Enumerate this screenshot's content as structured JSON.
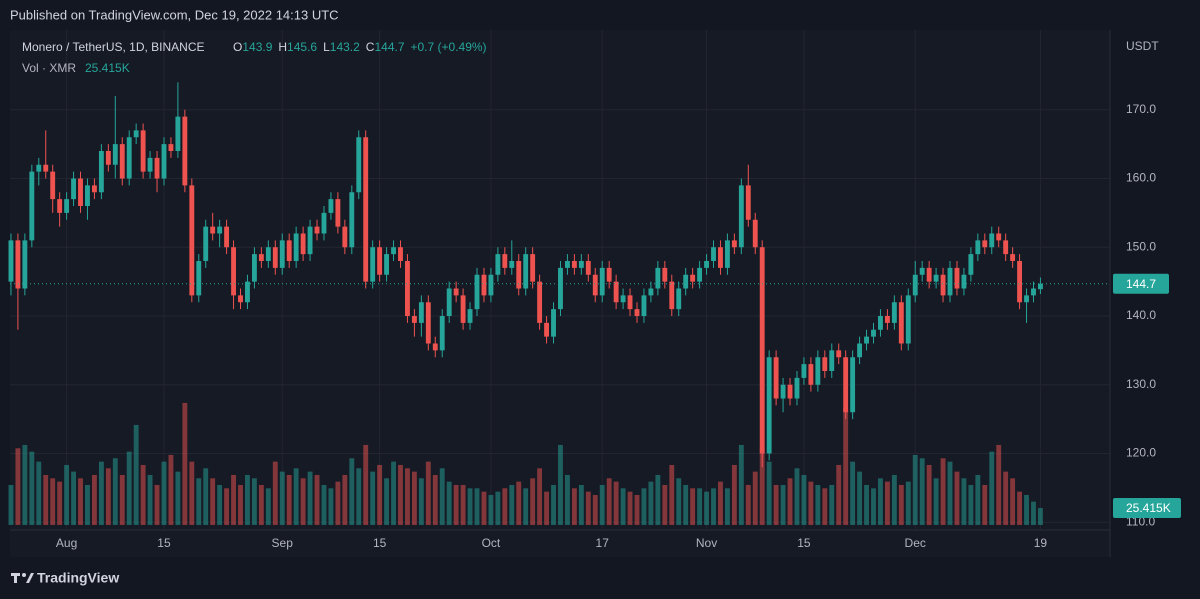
{
  "header": {
    "published": "Published on TradingView.com, Dec 19, 2022 14:13 UTC",
    "brand": "TradingView"
  },
  "chart_data": {
    "type": "candlestick",
    "symbol": "Monero / TetherUS, 1D, BINANCE",
    "ohlc_letters": [
      "O",
      "H",
      "L",
      "C"
    ],
    "change_label": "+0.7 (+0.49%)",
    "volume_title": "Vol · XMR",
    "last_volume_label": "25.415K",
    "price_axis_title": "USDT",
    "up_color": "#26a69a",
    "down_color": "#ef5350",
    "start_date": "2022-07-24",
    "xlim": [
      "2022-07-23",
      "2022-12-29"
    ],
    "xticks": [
      {
        "value": "2022-08-01",
        "label": "Aug"
      },
      {
        "value": "2022-08-15",
        "label": "15"
      },
      {
        "value": "2022-09-01",
        "label": "Sep"
      },
      {
        "value": "2022-09-15",
        "label": "15"
      },
      {
        "value": "2022-10-01",
        "label": "Oct"
      },
      {
        "value": "2022-10-17",
        "label": "17"
      },
      {
        "value": "2022-11-01",
        "label": "Nov"
      },
      {
        "value": "2022-11-15",
        "label": "15"
      },
      {
        "value": "2022-12-01",
        "label": "Dec"
      },
      {
        "value": "2022-12-19",
        "label": "19"
      }
    ],
    "ylim": [
      109.6,
      181.6
    ],
    "yticks": [
      {
        "value": 110,
        "label": "110.0"
      },
      {
        "value": 120,
        "label": "120.0"
      },
      {
        "value": 130,
        "label": "130.0"
      },
      {
        "value": 140,
        "label": "140.0"
      },
      {
        "value": 150,
        "label": "150.0"
      },
      {
        "value": 160,
        "label": "160.0"
      },
      {
        "value": 170,
        "label": "170.0"
      }
    ],
    "volume_ylim": [
      0,
      742
    ],
    "grid": true,
    "open": [
      145,
      151,
      144,
      151,
      161,
      162,
      161,
      157,
      155,
      157,
      160,
      156,
      159,
      158,
      164,
      162,
      165,
      160,
      166,
      167,
      161,
      163,
      160,
      165,
      164,
      169,
      159,
      143,
      148,
      153,
      152,
      153,
      150,
      143,
      142,
      145,
      149,
      148,
      150,
      147,
      151,
      148,
      152,
      149,
      153,
      152,
      155,
      157,
      153,
      150,
      158,
      166,
      145,
      150,
      146,
      149,
      150,
      148,
      140,
      139,
      142,
      136,
      135,
      140,
      144,
      143,
      139,
      141,
      146,
      143,
      146,
      149,
      147,
      148,
      144,
      149,
      145,
      139,
      137,
      141,
      147,
      148,
      147,
      148,
      146,
      143,
      147,
      145,
      142,
      143,
      141,
      140,
      143,
      144,
      147,
      145,
      141,
      144,
      146,
      145,
      147,
      148,
      150,
      147,
      151,
      150,
      159,
      154,
      150,
      120,
      134,
      128,
      130,
      128,
      131,
      133,
      130,
      134,
      132,
      135,
      134,
      126,
      134,
      136,
      137,
      138,
      140,
      139,
      142,
      136,
      143,
      146,
      147,
      145,
      146,
      143,
      147,
      144,
      146,
      149,
      151,
      150,
      152,
      151,
      149,
      148,
      142,
      143,
      143.9
    ],
    "high": [
      152,
      152,
      152,
      162,
      163,
      167,
      162,
      158,
      158,
      161,
      161,
      160,
      160,
      165,
      165,
      172,
      166,
      167,
      168,
      168,
      164,
      164,
      166,
      166,
      174,
      170,
      160,
      149,
      154,
      155,
      154,
      154,
      151,
      144,
      146,
      150,
      150,
      151,
      151,
      152,
      152,
      153,
      153,
      154,
      154,
      156,
      158,
      158,
      154,
      159,
      167,
      167,
      151,
      151,
      150,
      151,
      151,
      149,
      141,
      143,
      143,
      137,
      141,
      145,
      145,
      144,
      142,
      147,
      147,
      147,
      150,
      150,
      151,
      149,
      150,
      150,
      146,
      140,
      142,
      148,
      149,
      149,
      149,
      149,
      147,
      148,
      148,
      146,
      144,
      144,
      142,
      144,
      145,
      148,
      148,
      146,
      145,
      147,
      147,
      148,
      149,
      151,
      151,
      152,
      152,
      160,
      162,
      155,
      151,
      135,
      135,
      131,
      131,
      132,
      134,
      134,
      135,
      135,
      136,
      136,
      135,
      135,
      137,
      138,
      139,
      141,
      141,
      143,
      143,
      144,
      148,
      148,
      148,
      147,
      147,
      148,
      148,
      147,
      150,
      152,
      152,
      153,
      153,
      152,
      150,
      149,
      144,
      145,
      145.6
    ],
    "low": [
      143,
      138,
      143,
      150,
      159,
      160,
      155,
      153,
      154,
      156,
      155,
      154,
      157,
      157,
      161,
      160,
      159,
      159,
      165,
      160,
      160,
      158,
      159,
      163,
      163,
      158,
      142,
      142,
      147,
      151,
      150,
      149,
      141,
      141,
      141,
      144,
      147,
      147,
      146,
      146,
      147,
      147,
      148,
      148,
      151,
      151,
      154,
      152,
      149,
      149,
      157,
      144,
      144,
      145,
      145,
      148,
      147,
      139,
      137,
      137,
      135,
      134,
      134,
      139,
      142,
      138,
      138,
      140,
      142,
      142,
      145,
      146,
      146,
      143,
      143,
      144,
      138,
      136,
      136,
      140,
      146,
      146,
      146,
      145,
      142,
      142,
      144,
      141,
      141,
      140,
      139,
      139,
      142,
      143,
      144,
      140,
      140,
      143,
      144,
      144,
      146,
      147,
      146,
      146,
      149,
      149,
      153,
      149,
      118,
      119,
      127,
      126,
      127,
      127,
      130,
      129,
      129,
      131,
      131,
      133,
      125,
      125,
      133,
      135,
      136,
      137,
      138,
      138,
      135,
      135,
      142,
      145,
      144,
      144,
      142,
      142,
      143,
      143,
      145,
      148,
      149,
      149,
      150,
      148,
      147,
      141,
      139,
      142,
      143.2
    ],
    "close": [
      151,
      144,
      151,
      161,
      162,
      161,
      157,
      155,
      157,
      160,
      156,
      159,
      158,
      164,
      162,
      165,
      160,
      166,
      167,
      161,
      163,
      160,
      165,
      164,
      169,
      159,
      143,
      148,
      153,
      152,
      153,
      150,
      143,
      142,
      145,
      149,
      148,
      150,
      147,
      151,
      148,
      152,
      149,
      153,
      152,
      155,
      157,
      153,
      150,
      158,
      166,
      145,
      150,
      146,
      149,
      150,
      148,
      140,
      139,
      142,
      136,
      135,
      140,
      144,
      143,
      139,
      141,
      146,
      143,
      146,
      149,
      147,
      148,
      144,
      149,
      145,
      139,
      137,
      141,
      147,
      148,
      147,
      148,
      146,
      143,
      147,
      145,
      142,
      143,
      141,
      140,
      143,
      144,
      147,
      145,
      141,
      144,
      146,
      145,
      147,
      148,
      150,
      147,
      151,
      150,
      159,
      154,
      150,
      120,
      134,
      128,
      130,
      128,
      131,
      133,
      130,
      134,
      132,
      135,
      134,
      126,
      134,
      136,
      137,
      138,
      140,
      139,
      142,
      136,
      143,
      146,
      147,
      145,
      146,
      143,
      147,
      144,
      146,
      149,
      151,
      150,
      152,
      151,
      149,
      148,
      142,
      143,
      144,
      144.7
    ],
    "volume": [
      60,
      115,
      120,
      110,
      95,
      75,
      70,
      65,
      90,
      80,
      70,
      60,
      75,
      95,
      85,
      100,
      75,
      110,
      150,
      90,
      75,
      60,
      95,
      105,
      80,
      183,
      95,
      70,
      85,
      70,
      60,
      55,
      75,
      60,
      75,
      70,
      60,
      55,
      95,
      80,
      75,
      85,
      70,
      80,
      75,
      60,
      55,
      65,
      75,
      100,
      85,
      120,
      80,
      90,
      70,
      95,
      90,
      85,
      80,
      70,
      95,
      75,
      85,
      65,
      60,
      60,
      55,
      55,
      50,
      45,
      50,
      55,
      60,
      65,
      55,
      70,
      85,
      50,
      60,
      120,
      75,
      55,
      60,
      50,
      45,
      60,
      70,
      65,
      55,
      50,
      45,
      55,
      65,
      75,
      60,
      90,
      70,
      60,
      55,
      55,
      50,
      55,
      65,
      55,
      90,
      120,
      60,
      80,
      117,
      95,
      60,
      60,
      70,
      85,
      75,
      65,
      60,
      55,
      60,
      90,
      175,
      95,
      80,
      60,
      55,
      70,
      65,
      75,
      60,
      65,
      105,
      100,
      90,
      70,
      100,
      95,
      80,
      70,
      60,
      75,
      60,
      110,
      120,
      80,
      70,
      50,
      45,
      35,
      25.415
    ]
  }
}
